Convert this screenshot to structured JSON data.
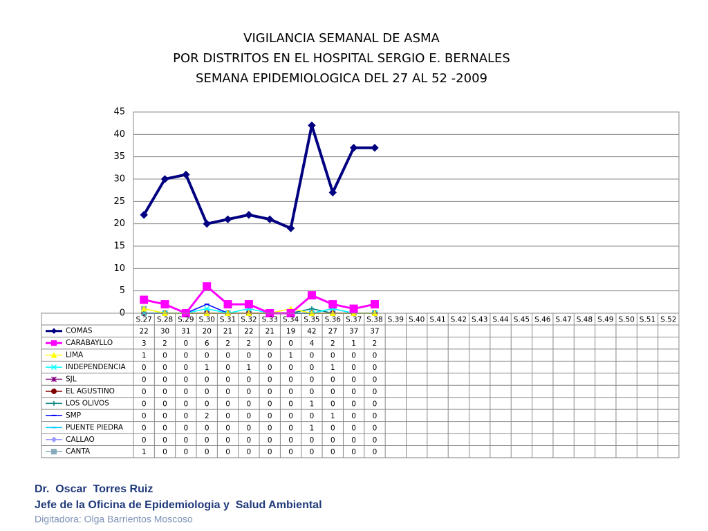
{
  "chart_data": {
    "type": "line",
    "title": [
      "VIGILANCIA SEMANAL DE ASMA",
      "POR DISTRITOS EN EL HOSPITAL SERGIO E. BERNALES",
      "SEMANA EPIDEMIOLOGICA DEL 27 AL 52 -2009"
    ],
    "categories": [
      "S.27",
      "S.28",
      "S.29",
      "S.30",
      "S.31",
      "S.32",
      "S.33",
      "S.34",
      "S.35",
      "S.36",
      "S.37",
      "S.38",
      "S.39",
      "S.40",
      "S.41",
      "S.42",
      "S.43",
      "S.44",
      "S.45",
      "S.46",
      "S.47",
      "S.48",
      "S.49",
      "S.50",
      "S.51",
      "S.52"
    ],
    "series": [
      {
        "name": "COMAS",
        "color": "#000080",
        "marker": "diamond",
        "values": [
          22,
          30,
          31,
          20,
          21,
          22,
          21,
          19,
          42,
          27,
          37,
          37,
          null,
          null,
          null,
          null,
          null,
          null,
          null,
          null,
          null,
          null,
          null,
          null,
          null,
          null
        ]
      },
      {
        "name": "CARABAYLLO",
        "color": "#ff00ff",
        "marker": "square",
        "values": [
          3,
          2,
          0,
          6,
          2,
          2,
          0,
          0,
          4,
          2,
          1,
          2,
          null,
          null,
          null,
          null,
          null,
          null,
          null,
          null,
          null,
          null,
          null,
          null,
          null,
          null
        ]
      },
      {
        "name": "LIMA",
        "color": "#ffff00",
        "marker": "triangle",
        "values": [
          1,
          0,
          0,
          0,
          0,
          0,
          0,
          1,
          0,
          0,
          0,
          0,
          null,
          null,
          null,
          null,
          null,
          null,
          null,
          null,
          null,
          null,
          null,
          null,
          null,
          null
        ]
      },
      {
        "name": "INDEPENDENCIA",
        "color": "#00ffff",
        "marker": "x",
        "values": [
          0,
          0,
          0,
          1,
          0,
          1,
          0,
          0,
          0,
          1,
          0,
          0,
          null,
          null,
          null,
          null,
          null,
          null,
          null,
          null,
          null,
          null,
          null,
          null,
          null,
          null
        ]
      },
      {
        "name": "SJL",
        "color": "#800080",
        "marker": "star",
        "values": [
          0,
          0,
          0,
          0,
          0,
          0,
          0,
          0,
          0,
          0,
          0,
          0,
          null,
          null,
          null,
          null,
          null,
          null,
          null,
          null,
          null,
          null,
          null,
          null,
          null,
          null
        ]
      },
      {
        "name": "EL AGUSTINO",
        "color": "#800000",
        "marker": "circle",
        "values": [
          0,
          0,
          0,
          0,
          0,
          0,
          0,
          0,
          0,
          0,
          0,
          0,
          null,
          null,
          null,
          null,
          null,
          null,
          null,
          null,
          null,
          null,
          null,
          null,
          null,
          null
        ]
      },
      {
        "name": "LOS OLIVOS",
        "color": "#008080",
        "marker": "plus",
        "values": [
          0,
          0,
          0,
          0,
          0,
          0,
          0,
          0,
          1,
          0,
          0,
          0,
          null,
          null,
          null,
          null,
          null,
          null,
          null,
          null,
          null,
          null,
          null,
          null,
          null,
          null
        ]
      },
      {
        "name": "SMP",
        "color": "#0000ff",
        "marker": "dash",
        "values": [
          0,
          0,
          0,
          2,
          0,
          0,
          0,
          0,
          0,
          1,
          0,
          0,
          null,
          null,
          null,
          null,
          null,
          null,
          null,
          null,
          null,
          null,
          null,
          null,
          null,
          null
        ]
      },
      {
        "name": "PUENTE PIEDRA",
        "color": "#00ccff",
        "marker": "dash",
        "values": [
          0,
          0,
          0,
          0,
          0,
          0,
          0,
          0,
          1,
          0,
          0,
          0,
          null,
          null,
          null,
          null,
          null,
          null,
          null,
          null,
          null,
          null,
          null,
          null,
          null,
          null
        ]
      },
      {
        "name": "CALLAO",
        "color": "#9999ff",
        "marker": "diamond",
        "values": [
          0,
          0,
          0,
          0,
          0,
          0,
          0,
          0,
          0,
          0,
          0,
          0,
          null,
          null,
          null,
          null,
          null,
          null,
          null,
          null,
          null,
          null,
          null,
          null,
          null,
          null
        ]
      },
      {
        "name": "CANTA",
        "color": "#86aabb",
        "marker": "square",
        "values": [
          1,
          0,
          0,
          0,
          0,
          0,
          0,
          0,
          0,
          0,
          0,
          0,
          null,
          null,
          null,
          null,
          null,
          null,
          null,
          null,
          null,
          null,
          null,
          null,
          null,
          null
        ]
      }
    ],
    "ylim": [
      0,
      45
    ],
    "yticks": [
      0,
      5,
      10,
      15,
      20,
      25,
      30,
      35,
      40,
      45
    ],
    "grid": true,
    "footer": [
      "Dr.  Oscar  Torres Ruiz",
      "Jefe de la Oficina de Epidemiologia y  Salud Ambiental",
      "Digitadora: Olga Barrientos Moscoso"
    ]
  }
}
